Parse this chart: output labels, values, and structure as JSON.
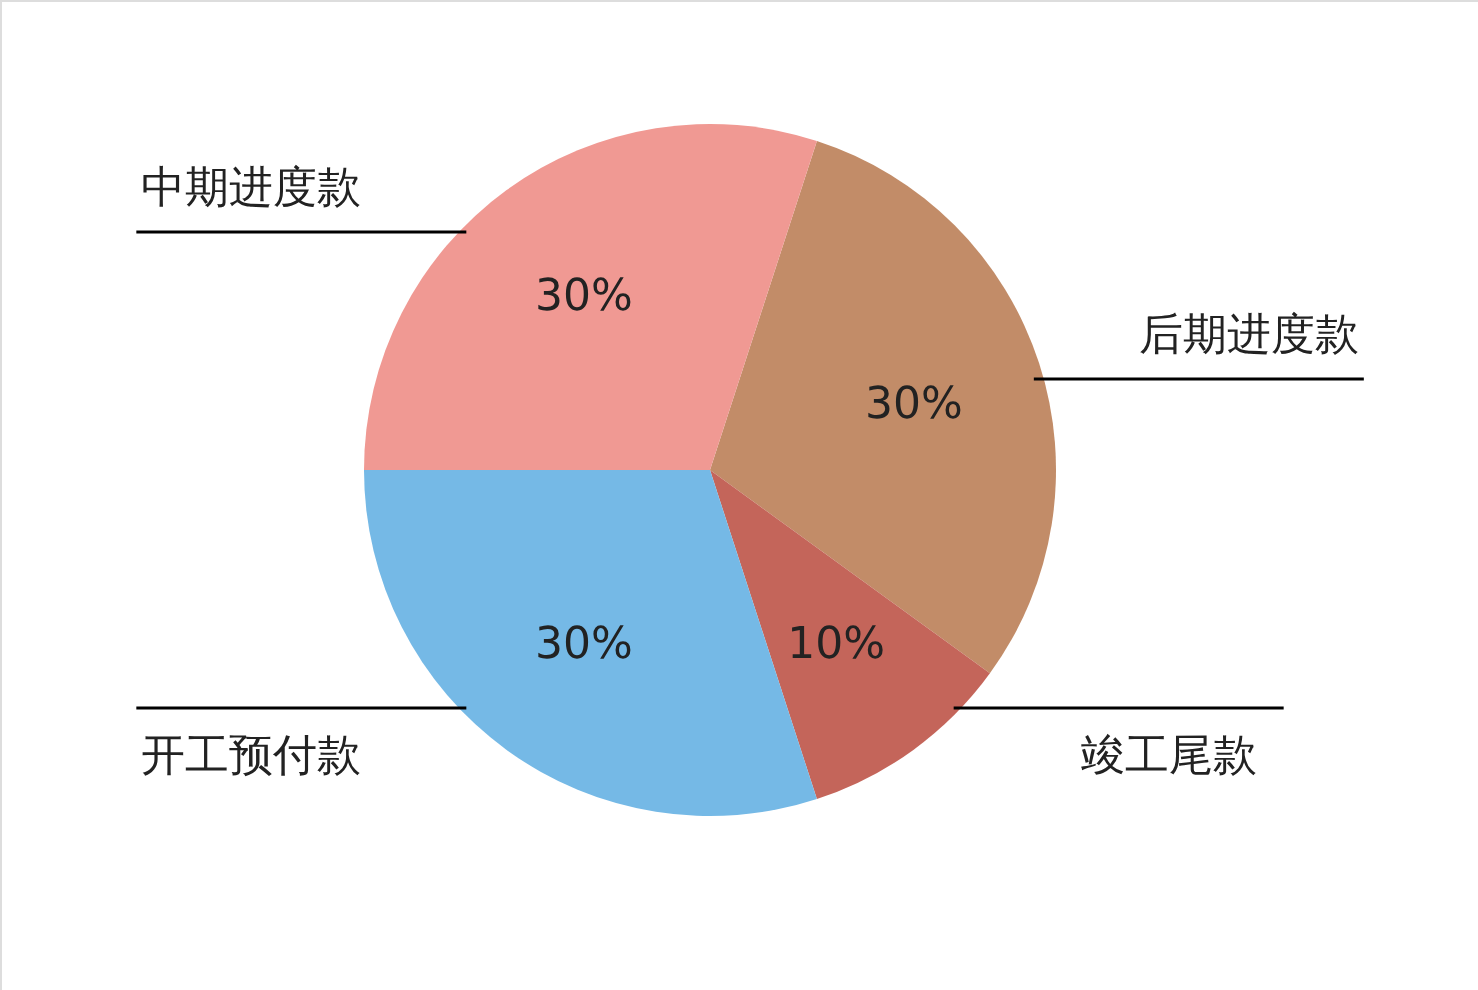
{
  "chart_data": {
    "type": "pie",
    "categories": [
      "后期进度款",
      "竣工尾款",
      "开工预付款",
      "中期进度款"
    ],
    "values": [
      30,
      10,
      30,
      30
    ],
    "colors": [
      "#c28c68",
      "#c4655a",
      "#75b9e6",
      "#f09993"
    ],
    "value_labels": [
      "30%",
      "10%",
      "30%",
      "30%"
    ]
  }
}
